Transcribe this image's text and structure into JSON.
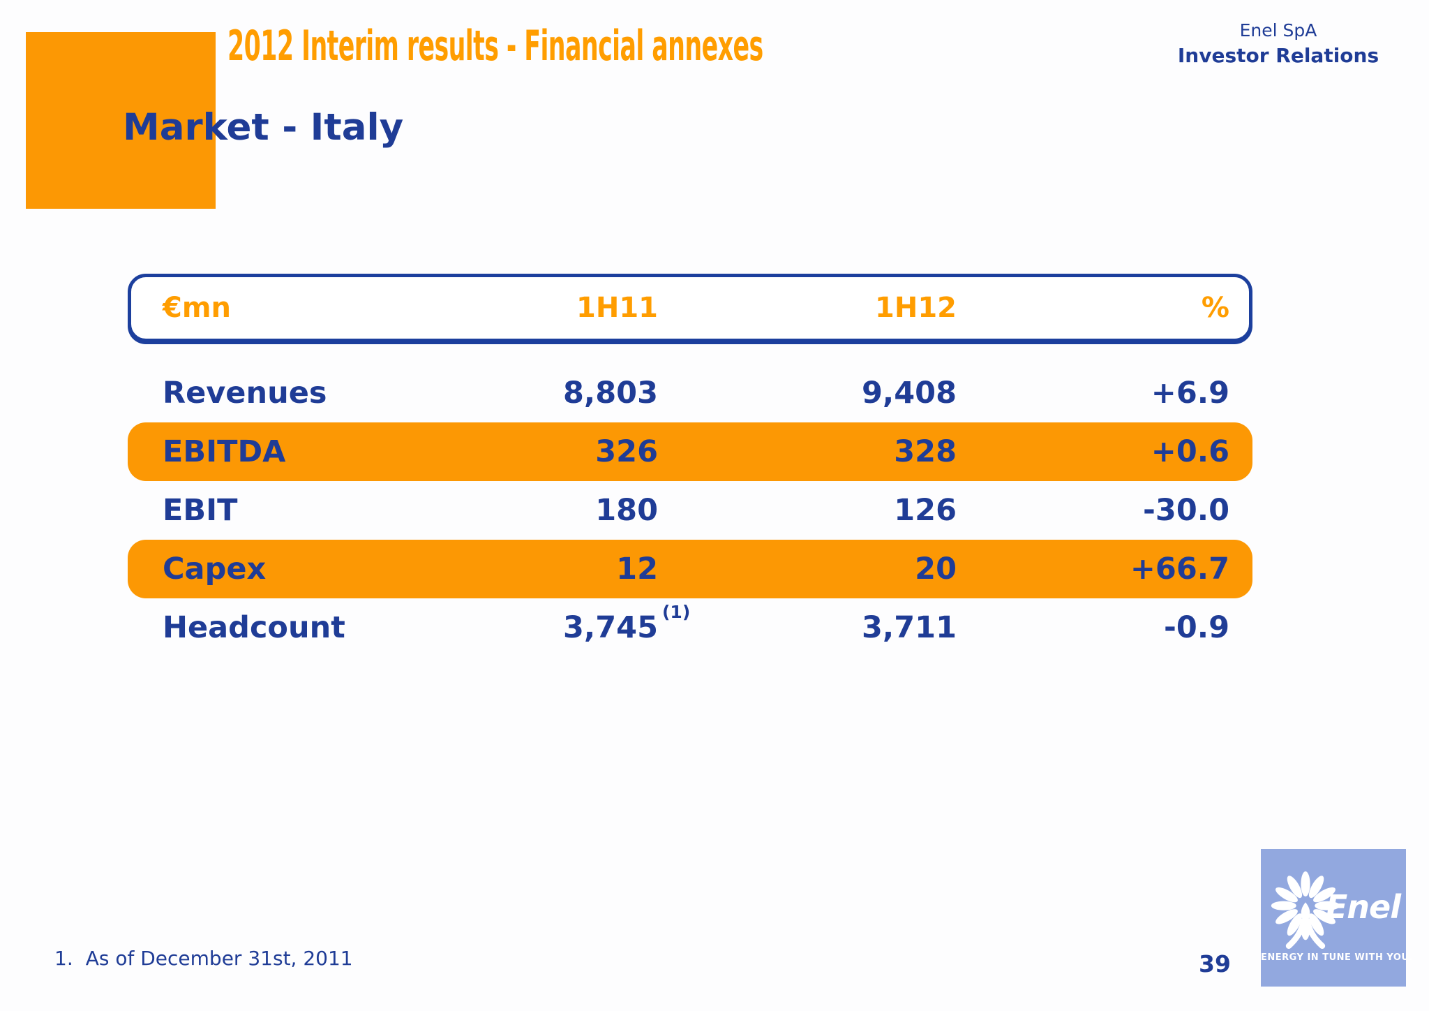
{
  "header": {
    "slide_tag": "2012 Interim results - Financial annexes",
    "company": "Enel SpA",
    "department": "Investor Relations"
  },
  "title": "Market - Italy",
  "table": {
    "columns": [
      "€mn",
      "1H11",
      "1H12",
      "%"
    ],
    "rows": [
      {
        "label": "Revenues",
        "h11": "8,803",
        "h11_sup": "",
        "h12": "9,408",
        "pct": "+6.9",
        "highlight": false
      },
      {
        "label": "EBITDA",
        "h11": "326",
        "h11_sup": "",
        "h12": "328",
        "pct": "+0.6",
        "highlight": true
      },
      {
        "label": "EBIT",
        "h11": "180",
        "h11_sup": "",
        "h12": "126",
        "pct": "-30.0",
        "highlight": false
      },
      {
        "label": "Capex",
        "h11": "12",
        "h11_sup": "",
        "h12": "20",
        "pct": "+66.7",
        "highlight": true
      },
      {
        "label": "Headcount",
        "h11": "3,745",
        "h11_sup": "(1)",
        "h12": "3,711",
        "pct": "-0.9",
        "highlight": false
      }
    ]
  },
  "footnote": {
    "marker": "1.",
    "text": "As of December 31st, 2011"
  },
  "page_number": "39",
  "logo": {
    "wordmark": "Enel",
    "tagline": "ENERGY IN TUNE WITH YOU."
  },
  "colors": {
    "accent_orange": "#FC9804",
    "orange_text": "#FF9D00",
    "text_blue": "#1F3C96",
    "border_blue": "#1C3F9D",
    "logo_background": "#92A8DF"
  }
}
